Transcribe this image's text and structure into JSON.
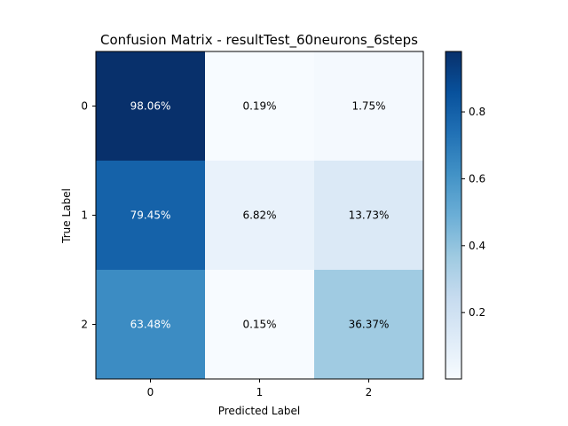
{
  "chart_data": {
    "type": "heatmap",
    "title": "Confusion Matrix - resultTest_60neurons_6steps",
    "xlabel": "Predicted Label",
    "ylabel": "True Label",
    "x_categories": [
      "0",
      "1",
      "2"
    ],
    "y_categories": [
      "0",
      "1",
      "2"
    ],
    "values": [
      [
        0.9806,
        0.0019,
        0.0175
      ],
      [
        0.7945,
        0.0682,
        0.1373
      ],
      [
        0.6348,
        0.0015,
        0.3637
      ]
    ],
    "cell_labels": [
      [
        "98.06%",
        "0.19%",
        "1.75%"
      ],
      [
        "79.45%",
        "6.82%",
        "13.73%"
      ],
      [
        "63.48%",
        "0.15%",
        "36.37%"
      ]
    ],
    "colormap": "Blues",
    "colorbar": {
      "range": [
        0.0015,
        0.9806
      ],
      "ticks": [
        0.2,
        0.4,
        0.6,
        0.8
      ],
      "tick_labels": [
        "0.2",
        "0.4",
        "0.6",
        "0.8"
      ]
    },
    "text_colors": {
      "dark_cell": "#ffffff",
      "light_cell": "#000000"
    }
  }
}
